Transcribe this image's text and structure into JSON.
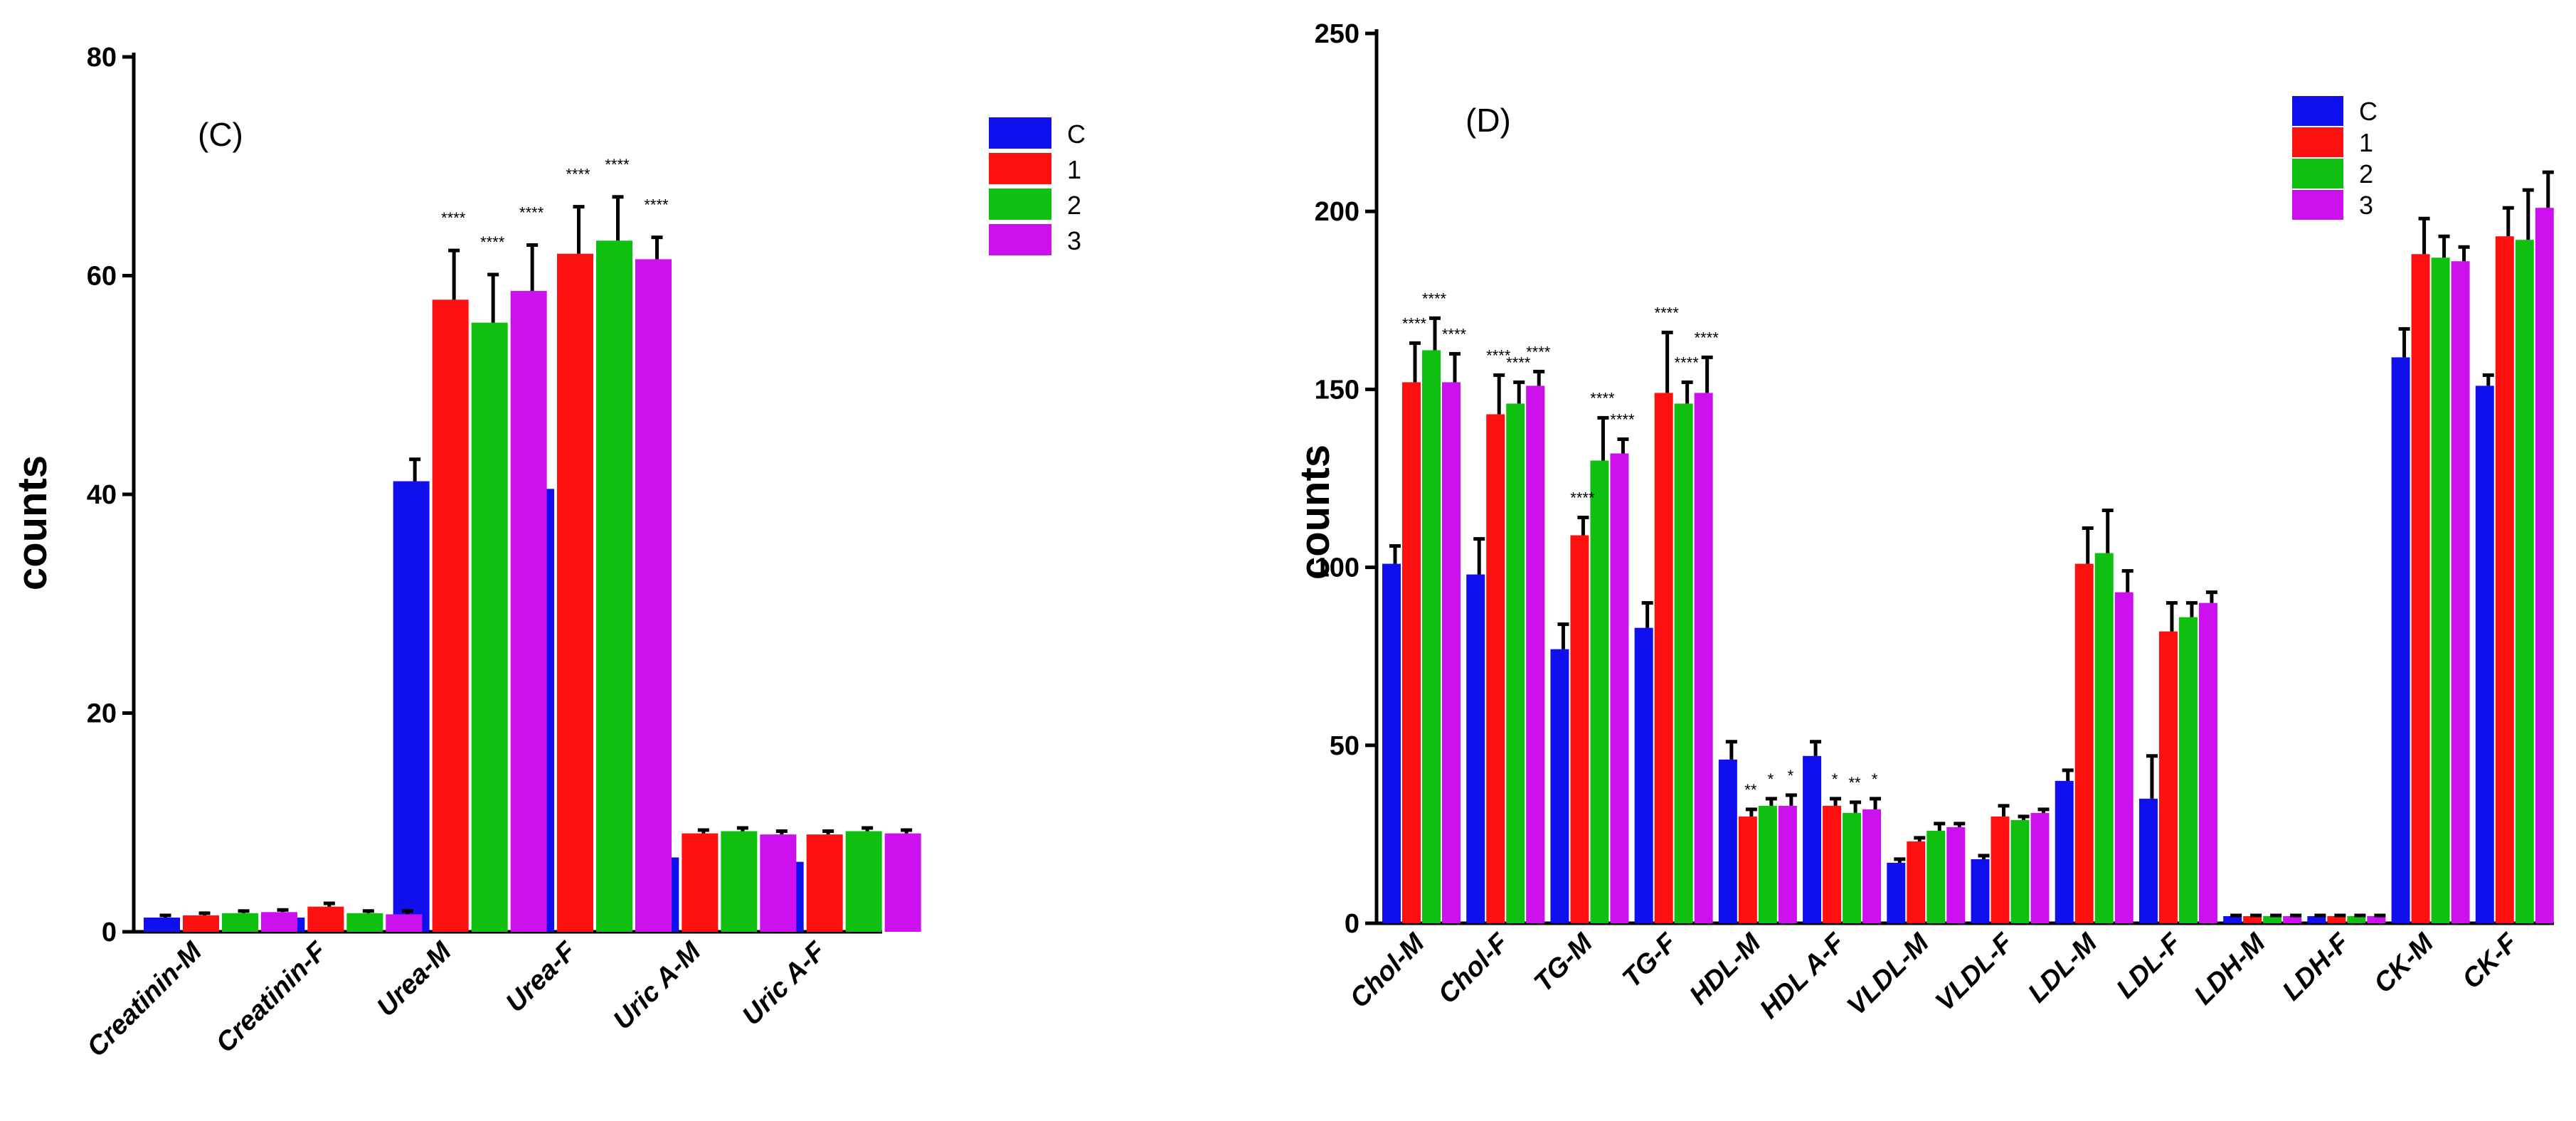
{
  "colors": {
    "C": "#1010ee",
    "1": "#ff1010",
    "2": "#10c010",
    "3": "#cc10ee"
  },
  "chart_data": [
    {
      "type": "bar",
      "panel_label": "(C)",
      "ylabel": "counts",
      "ylim": [
        0,
        80
      ],
      "yticks": [
        "0",
        "20",
        "40",
        "60",
        "80"
      ],
      "categories": [
        "Creatinin-M",
        "Creatinin-F",
        "Urea-M",
        "Urea-F",
        "Uric A-M",
        "Uric A-F"
      ],
      "legend": [
        "C",
        "1",
        "2",
        "3"
      ],
      "series": [
        {
          "name": "C",
          "values": [
            1.3,
            1.3,
            41.2,
            40.5,
            6.8,
            6.4
          ],
          "errors": [
            0.2,
            0.2,
            2.0,
            2.4,
            0.3,
            0.3
          ]
        },
        {
          "name": "1",
          "values": [
            1.5,
            2.3,
            57.8,
            62.0,
            9.0,
            8.9
          ],
          "errors": [
            0.2,
            0.3,
            4.5,
            4.3,
            0.3,
            0.3
          ]
        },
        {
          "name": "2",
          "values": [
            1.7,
            1.7,
            55.7,
            63.2,
            9.2,
            9.2
          ],
          "errors": [
            0.2,
            0.2,
            4.4,
            4.0,
            0.3,
            0.3
          ]
        },
        {
          "name": "3",
          "values": [
            1.8,
            1.6,
            58.6,
            61.5,
            8.9,
            9.0
          ],
          "errors": [
            0.2,
            0.3,
            4.2,
            2.0,
            0.3,
            0.3
          ]
        }
      ],
      "annotations": [
        {
          "category": "Urea-M",
          "series": "1",
          "text": "****"
        },
        {
          "category": "Urea-M",
          "series": "2",
          "text": "****"
        },
        {
          "category": "Urea-M",
          "series": "3",
          "text": "****"
        },
        {
          "category": "Urea-F",
          "series": "1",
          "text": "****"
        },
        {
          "category": "Urea-F",
          "series": "2",
          "text": "****"
        },
        {
          "category": "Urea-F",
          "series": "3",
          "text": "****"
        }
      ]
    },
    {
      "type": "bar",
      "panel_label": "(D)",
      "ylabel": "counts",
      "ylim": [
        0,
        250
      ],
      "yticks": [
        "0",
        "50",
        "100",
        "150",
        "200",
        "250"
      ],
      "categories": [
        "Chol-M",
        "Chol-F",
        "TG-M",
        "TG-F",
        "HDL-M",
        "HDL A-F",
        "VLDL-M",
        "VLDL-F",
        "LDL-M",
        "LDL-F",
        "LDH-M",
        "LDH-F",
        "CK-M",
        "CK-F"
      ],
      "legend": [
        "C",
        "1",
        "2",
        "3"
      ],
      "series": [
        {
          "name": "C",
          "values": [
            101,
            98,
            77,
            83,
            46,
            47,
            17,
            18,
            40,
            35,
            2,
            2,
            159,
            151
          ],
          "errors": [
            5,
            10,
            7,
            7,
            5,
            4,
            1,
            1,
            3,
            12,
            0.2,
            0.2,
            8,
            3
          ]
        },
        {
          "name": "1",
          "values": [
            152,
            143,
            109,
            149,
            30,
            33,
            23,
            30,
            101,
            82,
            2,
            2,
            188,
            193
          ],
          "errors": [
            11,
            11,
            5,
            17,
            2,
            2,
            1,
            3,
            10,
            8,
            0.2,
            0.2,
            10,
            8
          ]
        },
        {
          "name": "2",
          "values": [
            161,
            146,
            130,
            146,
            33,
            31,
            26,
            29,
            104,
            86,
            2,
            2,
            187,
            192
          ],
          "errors": [
            9,
            6,
            12,
            6,
            2,
            3,
            2,
            1,
            12,
            4,
            0.2,
            0.2,
            6,
            14
          ]
        },
        {
          "name": "3",
          "values": [
            152,
            151,
            132,
            149,
            33,
            32,
            27,
            31,
            93,
            90,
            2,
            2,
            186,
            201
          ],
          "errors": [
            8,
            4,
            4,
            10,
            3,
            3,
            1,
            1,
            6,
            3,
            0.2,
            0.2,
            4,
            10
          ]
        }
      ],
      "annotations": [
        {
          "category": "Chol-M",
          "series": "1",
          "text": "****"
        },
        {
          "category": "Chol-M",
          "series": "2",
          "text": "****"
        },
        {
          "category": "Chol-M",
          "series": "3",
          "text": "****"
        },
        {
          "category": "Chol-F",
          "series": "1",
          "text": "****"
        },
        {
          "category": "Chol-F",
          "series": "2",
          "text": "****"
        },
        {
          "category": "Chol-F",
          "series": "3",
          "text": "****"
        },
        {
          "category": "TG-M",
          "series": "1",
          "text": "****"
        },
        {
          "category": "TG-M",
          "series": "2",
          "text": "****"
        },
        {
          "category": "TG-M",
          "series": "3",
          "text": "****"
        },
        {
          "category": "TG-F",
          "series": "1",
          "text": "****"
        },
        {
          "category": "TG-F",
          "series": "2",
          "text": "****"
        },
        {
          "category": "TG-F",
          "series": "3",
          "text": "****"
        },
        {
          "category": "HDL-M",
          "series": "1",
          "text": "**"
        },
        {
          "category": "HDL-M",
          "series": "2",
          "text": "*"
        },
        {
          "category": "HDL-M",
          "series": "3",
          "text": "*"
        },
        {
          "category": "HDL A-F",
          "series": "1",
          "text": "*"
        },
        {
          "category": "HDL A-F",
          "series": "2",
          "text": "**"
        },
        {
          "category": "HDL A-F",
          "series": "3",
          "text": "*"
        }
      ]
    }
  ]
}
